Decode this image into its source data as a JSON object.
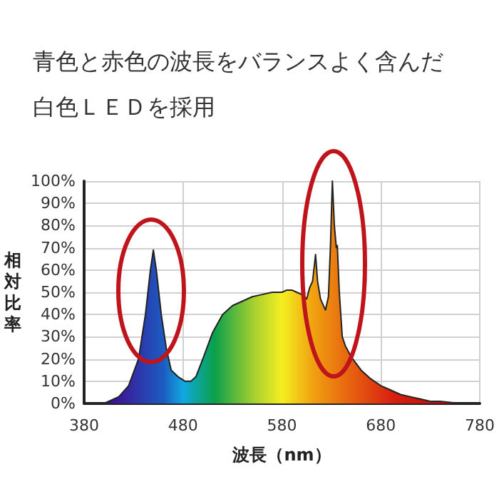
{
  "chart_data": {
    "type": "area",
    "title": "青色と赤色の波長をバランスよく含んだ白色ＬＥＤを採用",
    "xlabel": "波長（nm）",
    "ylabel": "相対比率",
    "x": [
      380,
      400,
      405,
      415,
      425,
      435,
      442,
      447,
      450,
      453,
      458,
      463,
      468,
      475,
      482,
      488,
      493,
      500,
      510,
      520,
      530,
      540,
      550,
      560,
      570,
      580,
      585,
      590,
      595,
      600,
      605,
      608,
      611,
      614,
      616,
      619,
      624,
      627,
      629,
      631,
      633,
      635,
      636,
      638,
      641,
      644,
      650,
      660,
      670,
      680,
      690,
      700,
      710,
      720,
      730,
      740,
      760,
      780
    ],
    "series": [
      {
        "color": "#222222",
        "values": [
          0,
          0,
          1,
          3,
          8,
          20,
          40,
          60,
          69,
          60,
          40,
          25,
          15,
          12,
          10,
          10,
          12,
          20,
          32,
          40,
          44,
          46,
          48,
          49,
          50,
          50,
          51,
          51,
          50,
          49,
          47,
          52,
          55,
          67,
          55,
          47,
          42,
          48,
          70,
          100,
          80,
          70,
          71,
          50,
          30,
          26,
          21,
          15,
          11,
          8,
          6,
          4,
          3,
          2,
          1,
          1,
          0,
          0
        ]
      }
    ],
    "xlim": [
      380,
      780
    ],
    "xticks": [
      380,
      480,
      580,
      680,
      780
    ],
    "ylim": [
      0,
      100
    ],
    "yticks": [
      {
        "value": 0,
        "label": "0%"
      },
      {
        "value": 10,
        "label": "10%"
      },
      {
        "value": 20,
        "label": "20%"
      },
      {
        "value": 30,
        "label": "30%"
      },
      {
        "value": 40,
        "label": "40%"
      },
      {
        "value": 50,
        "label": "50%"
      },
      {
        "value": 60,
        "label": "60%"
      },
      {
        "value": 70,
        "label": "70%"
      },
      {
        "value": 80,
        "label": "80%"
      },
      {
        "value": 90,
        "label": "90%"
      },
      {
        "value": 100,
        "label": "100%"
      }
    ],
    "grid": true,
    "marker": "none"
  }
}
